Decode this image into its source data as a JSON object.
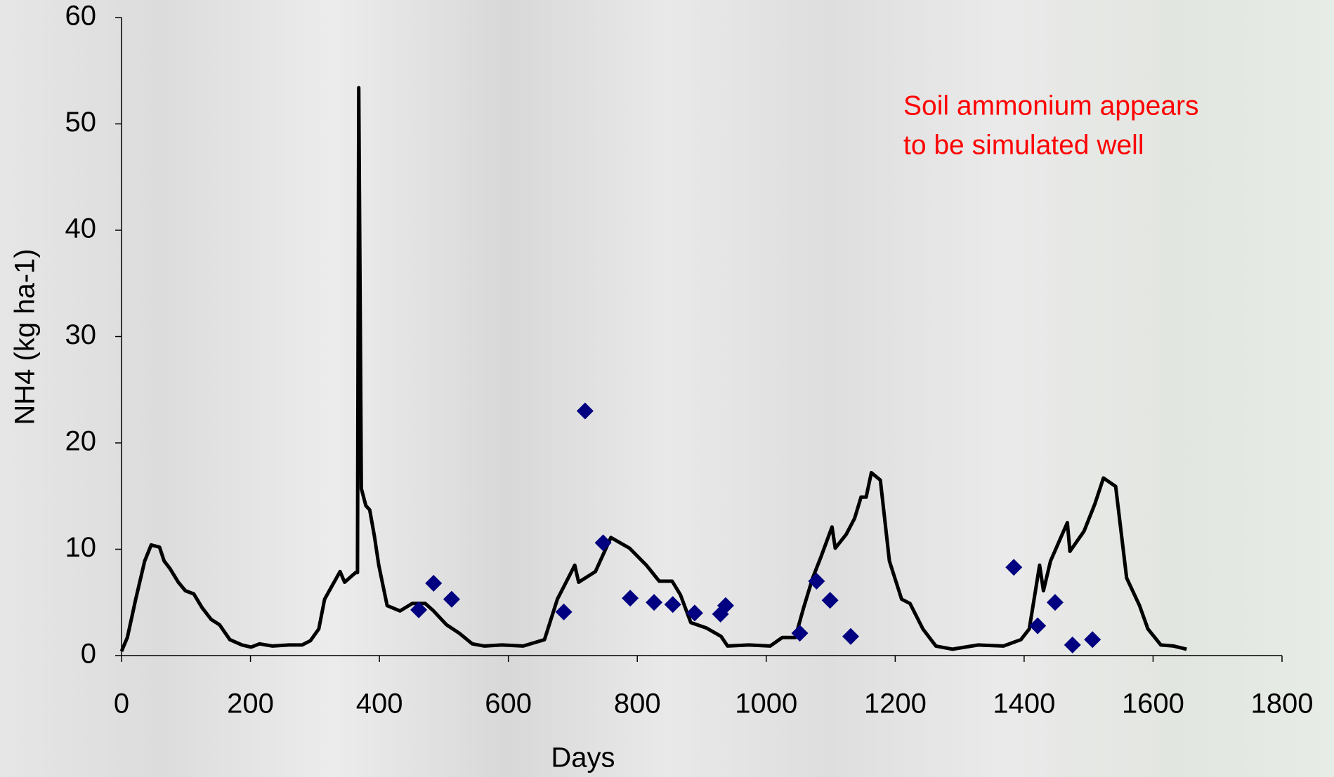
{
  "chart_data": {
    "type": "line",
    "x_label": "Days",
    "y_label": "NH4 (kg ha-1)",
    "annotation": [
      "Soil ammonium appears",
      "to be simulated well"
    ],
    "annotation_color": "#ff0000",
    "xlim": [
      0,
      1800
    ],
    "xticks": [
      0,
      200,
      400,
      600,
      800,
      1000,
      1200,
      1400,
      1600,
      1800
    ],
    "ylim": [
      0,
      60
    ],
    "yticks": [
      0,
      10,
      20,
      30,
      40,
      50,
      60
    ],
    "grid": false,
    "series": [
      {
        "type": "line",
        "color": "#000000",
        "x": [
          0,
          9,
          22,
          36,
          46,
          59,
          66,
          75,
          88,
          99,
          112,
          125,
          139,
          152,
          168,
          187,
          201,
          214,
          234,
          260,
          280,
          293,
          306,
          315,
          326,
          339,
          346,
          363,
          366,
          368,
          372,
          379,
          385,
          392,
          399,
          412,
          432,
          451,
          471,
          484,
          504,
          524,
          544,
          563,
          590,
          623,
          656,
          676,
          693,
          703,
          709,
          735,
          759,
          788,
          814,
          834,
          854,
          867,
          883,
          907,
          930,
          940,
          973,
          1006,
          1025,
          1045,
          1058,
          1072,
          1085,
          1102,
          1107,
          1124,
          1137,
          1147,
          1155,
          1163,
          1177,
          1191,
          1210,
          1223,
          1243,
          1263,
          1289,
          1329,
          1368,
          1395,
          1408,
          1424,
          1430,
          1441,
          1467,
          1471,
          1493,
          1510,
          1523,
          1542,
          1559,
          1579,
          1592,
          1612,
          1632,
          1652
        ],
        "values": [
          0.4,
          1.7,
          5.3,
          8.9,
          10.4,
          10.2,
          8.9,
          8.2,
          6.9,
          6.1,
          5.8,
          4.5,
          3.4,
          2.9,
          1.5,
          1.0,
          0.8,
          1.1,
          0.9,
          1.0,
          1.0,
          1.4,
          2.5,
          5.3,
          6.5,
          7.9,
          6.9,
          7.8,
          7.8,
          53.4,
          15.7,
          14.1,
          13.7,
          11.3,
          8.5,
          4.7,
          4.2,
          4.9,
          4.9,
          4.2,
          2.9,
          2.1,
          1.1,
          0.9,
          1.0,
          0.9,
          1.5,
          5.3,
          7.3,
          8.5,
          6.9,
          7.9,
          11.1,
          10.1,
          8.5,
          7.0,
          7.0,
          5.7,
          3.1,
          2.6,
          1.8,
          0.9,
          1.0,
          0.9,
          1.7,
          1.7,
          4.5,
          7.3,
          9.3,
          12.1,
          10.1,
          11.4,
          12.9,
          14.9,
          14.9,
          17.2,
          16.5,
          8.9,
          5.3,
          4.9,
          2.5,
          0.9,
          0.6,
          1.0,
          0.9,
          1.5,
          2.5,
          8.5,
          6.1,
          8.9,
          12.5,
          9.8,
          11.7,
          14.3,
          16.7,
          15.9,
          7.3,
          4.7,
          2.5,
          1.0,
          0.9,
          0.6
        ]
      },
      {
        "type": "scatter",
        "color": "#000080",
        "marker": "diamond",
        "x": [
          461,
          484,
          512,
          686,
          719,
          747,
          789,
          826,
          855,
          889,
          929,
          937,
          1052,
          1078,
          1099,
          1131,
          1384,
          1421,
          1448,
          1475,
          1506
        ],
        "values": [
          4.3,
          6.8,
          5.3,
          4.1,
          23.0,
          10.6,
          5.4,
          5.0,
          4.8,
          4.0,
          3.9,
          4.7,
          2.1,
          7.0,
          5.2,
          1.8,
          8.3,
          2.8,
          5.0,
          1.0,
          1.5
        ]
      }
    ]
  }
}
